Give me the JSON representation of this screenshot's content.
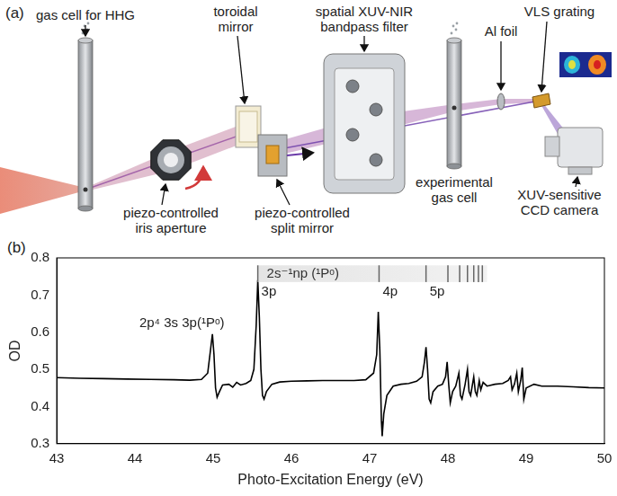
{
  "diagram": {
    "panel_label": "(a)",
    "components": [
      {
        "label": "gas cell for HHG"
      },
      {
        "label": "piezo-controlled iris aperture"
      },
      {
        "label": "toroidal mirror"
      },
      {
        "label": "piezo-controlled split mirror"
      },
      {
        "label": "spatial XUV-NIR bandpass filter"
      },
      {
        "label": "experimental gas cell"
      },
      {
        "label": "Al foil"
      },
      {
        "label": "VLS grating"
      },
      {
        "label": "XUV-sensitive CCD camera"
      }
    ]
  },
  "chart_data": {
    "panel_label": "(b)",
    "type": "line",
    "color": "#000000",
    "grid": false,
    "x_label": "Photo-Excitation Energy (eV)",
    "y_label": "OD",
    "xlim": [
      43,
      50
    ],
    "xticks": [
      43,
      44,
      45,
      46,
      47,
      48,
      49,
      50
    ],
    "ylim": [
      0.3,
      0.8
    ],
    "yticks": [
      0.3,
      0.4,
      0.5,
      0.6,
      0.7,
      0.8
    ],
    "x": [
      43.0,
      43.3,
      43.6,
      43.9,
      44.2,
      44.5,
      44.7,
      44.85,
      44.93,
      44.97,
      44.99,
      45.01,
      45.03,
      45.05,
      45.08,
      45.12,
      45.2,
      45.25,
      45.3,
      45.35,
      45.42,
      45.48,
      45.52,
      45.55,
      45.57,
      45.59,
      45.61,
      45.63,
      45.65,
      45.68,
      45.75,
      45.85,
      46.0,
      46.2,
      46.4,
      46.6,
      46.8,
      46.95,
      47.05,
      47.09,
      47.11,
      47.13,
      47.15,
      47.16,
      47.18,
      47.22,
      47.3,
      47.4,
      47.5,
      47.6,
      47.67,
      47.7,
      47.72,
      47.74,
      47.76,
      47.78,
      47.81,
      47.87,
      47.93,
      47.97,
      47.99,
      48.01,
      48.03,
      48.06,
      48.1,
      48.14,
      48.16,
      48.18,
      48.22,
      48.25,
      48.27,
      48.29,
      48.33,
      48.35,
      48.37,
      48.4,
      48.42,
      48.45,
      48.5,
      48.6,
      48.7,
      48.77,
      48.8,
      48.82,
      48.85,
      48.88,
      48.9,
      48.93,
      48.95,
      48.97,
      49.0,
      49.1,
      49.2,
      49.4,
      49.6,
      49.8,
      50.0
    ],
    "values": [
      0.478,
      0.476,
      0.475,
      0.474,
      0.473,
      0.472,
      0.471,
      0.473,
      0.49,
      0.56,
      0.595,
      0.54,
      0.45,
      0.425,
      0.44,
      0.458,
      0.46,
      0.452,
      0.465,
      0.458,
      0.462,
      0.47,
      0.5,
      0.62,
      0.74,
      0.64,
      0.5,
      0.43,
      0.42,
      0.44,
      0.46,
      0.466,
      0.468,
      0.469,
      0.47,
      0.47,
      0.47,
      0.472,
      0.49,
      0.54,
      0.655,
      0.55,
      0.36,
      0.32,
      0.38,
      0.43,
      0.455,
      0.46,
      0.462,
      0.468,
      0.48,
      0.52,
      0.56,
      0.5,
      0.42,
      0.41,
      0.44,
      0.455,
      0.46,
      0.48,
      0.52,
      0.46,
      0.41,
      0.44,
      0.455,
      0.49,
      0.43,
      0.42,
      0.46,
      0.5,
      0.44,
      0.43,
      0.48,
      0.44,
      0.43,
      0.47,
      0.445,
      0.465,
      0.455,
      0.46,
      0.462,
      0.47,
      0.48,
      0.445,
      0.46,
      0.49,
      0.44,
      0.47,
      0.505,
      0.42,
      0.45,
      0.46,
      0.455,
      0.455,
      0.453,
      0.451,
      0.45
    ],
    "annotations": [
      {
        "text": "2p⁴ 3s 3p(¹Pᵒ)",
        "x": 44.6,
        "y": 0.625
      }
    ],
    "series_band": {
      "text": "2s⁻¹np (¹Pᵒ)",
      "x_end": 48.5,
      "ylim": [
        0.735,
        0.78
      ],
      "lines": [
        {
          "x": 45.57,
          "label": "3p"
        },
        {
          "x": 47.12,
          "label": "4p"
        },
        {
          "x": 47.72,
          "label": "5p"
        },
        {
          "x": 48.0
        },
        {
          "x": 48.15
        },
        {
          "x": 48.25
        },
        {
          "x": 48.33
        },
        {
          "x": 48.39
        },
        {
          "x": 48.44
        }
      ]
    }
  }
}
